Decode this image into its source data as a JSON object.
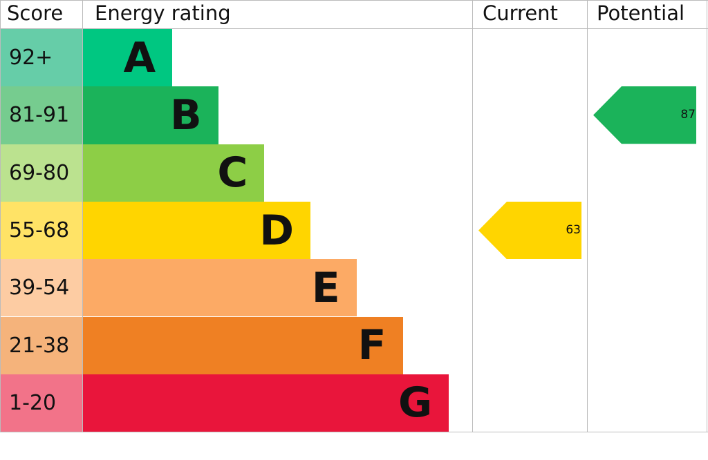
{
  "chart_data": {
    "type": "bar",
    "headers": {
      "score": "Score",
      "rating": "Energy rating",
      "current": "Current",
      "potential": "Potential"
    },
    "bands": [
      {
        "letter": "A",
        "range": "92+",
        "color": "#00c781",
        "score_color": "#66cda8"
      },
      {
        "letter": "B",
        "range": "81-91",
        "color": "#1bb35a",
        "score_color": "#76cc8f"
      },
      {
        "letter": "C",
        "range": "69-80",
        "color": "#8dce46",
        "score_color": "#bbe28f"
      },
      {
        "letter": "D",
        "range": "55-68",
        "color": "#ffd500",
        "score_color": "#ffe366"
      },
      {
        "letter": "E",
        "range": "39-54",
        "color": "#fcaa65",
        "score_color": "#fdcca3"
      },
      {
        "letter": "F",
        "range": "21-38",
        "color": "#ef8023",
        "score_color": "#f5b37b"
      },
      {
        "letter": "G",
        "range": "1-20",
        "color": "#e9153b",
        "score_color": "#f27389"
      }
    ],
    "current": {
      "value": "63",
      "band": "D",
      "color": "#ffd500"
    },
    "potential": {
      "value": "87",
      "band": "B",
      "color": "#1bb35a"
    }
  }
}
